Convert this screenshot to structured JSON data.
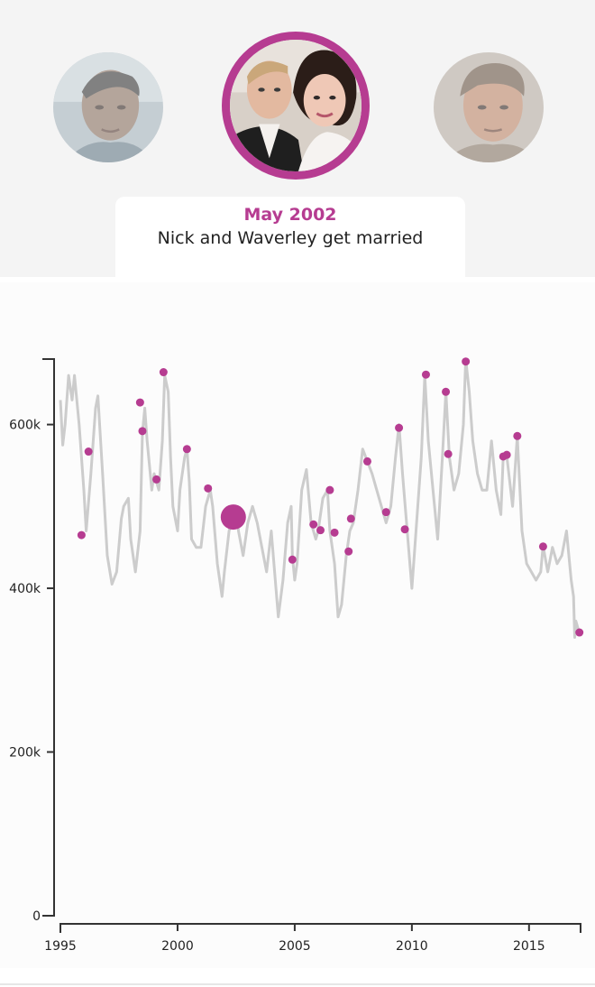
{
  "header": {
    "avatars": [
      {
        "position": "left",
        "icon": "person-portrait",
        "active": false
      },
      {
        "position": "center",
        "icon": "couple-portrait",
        "active": true
      },
      {
        "position": "right",
        "icon": "person-portrait",
        "active": false
      }
    ],
    "caption": {
      "date": "May 2002",
      "text": "Nick and Waverley get married"
    }
  },
  "colors": {
    "accent": "#b63c91",
    "line": "#cccccc",
    "band": "#f4f4f4",
    "axis": "#333333"
  },
  "chart_data": {
    "type": "line",
    "xlim": [
      1995,
      2017.2
    ],
    "ylim": [
      0,
      680000
    ],
    "x_ticks": [
      1995,
      2000,
      2005,
      2010,
      2015
    ],
    "x_tick_labels": [
      "1995",
      "2000",
      "2005",
      "2010",
      "2015"
    ],
    "y_ticks": [
      0,
      200000,
      400000,
      600000
    ],
    "y_tick_labels": [
      "0",
      "200k",
      "400k",
      "600k"
    ],
    "grid": false,
    "legend": "none",
    "series": [
      {
        "line": [
          [
            1995.0,
            630000
          ],
          [
            1995.1,
            575000
          ],
          [
            1995.2,
            600000
          ],
          [
            1995.35,
            660000
          ],
          [
            1995.5,
            630000
          ],
          [
            1995.6,
            660000
          ],
          [
            1995.8,
            600000
          ],
          [
            1996.0,
            520000
          ],
          [
            1996.1,
            470000
          ],
          [
            1996.3,
            540000
          ],
          [
            1996.5,
            620000
          ],
          [
            1996.6,
            635000
          ],
          [
            1996.8,
            540000
          ],
          [
            1997.0,
            440000
          ],
          [
            1997.2,
            405000
          ],
          [
            1997.4,
            420000
          ],
          [
            1997.6,
            485000
          ],
          [
            1997.7,
            500000
          ],
          [
            1997.9,
            510000
          ],
          [
            1998.0,
            460000
          ],
          [
            1998.2,
            420000
          ],
          [
            1998.4,
            470000
          ],
          [
            1998.5,
            590000
          ],
          [
            1998.6,
            620000
          ],
          [
            1998.7,
            580000
          ],
          [
            1998.9,
            520000
          ],
          [
            1999.0,
            540000
          ],
          [
            1999.2,
            520000
          ],
          [
            1999.35,
            580000
          ],
          [
            1999.45,
            660000
          ],
          [
            1999.6,
            640000
          ],
          [
            1999.7,
            560000
          ],
          [
            1999.8,
            500000
          ],
          [
            2000.0,
            470000
          ],
          [
            2000.1,
            520000
          ],
          [
            2000.3,
            560000
          ],
          [
            2000.4,
            570000
          ],
          [
            2000.5,
            530000
          ],
          [
            2000.6,
            460000
          ],
          [
            2000.8,
            450000
          ],
          [
            2001.0,
            450000
          ],
          [
            2001.2,
            500000
          ],
          [
            2001.4,
            520000
          ],
          [
            2001.5,
            500000
          ],
          [
            2001.7,
            430000
          ],
          [
            2001.9,
            390000
          ],
          [
            2002.0,
            420000
          ],
          [
            2002.2,
            470000
          ],
          [
            2002.38,
            487000
          ],
          [
            2002.5,
            500000
          ],
          [
            2002.6,
            470000
          ],
          [
            2002.8,
            440000
          ],
          [
            2003.0,
            480000
          ],
          [
            2003.2,
            500000
          ],
          [
            2003.4,
            480000
          ],
          [
            2003.6,
            450000
          ],
          [
            2003.8,
            420000
          ],
          [
            2004.0,
            470000
          ],
          [
            2004.2,
            400000
          ],
          [
            2004.3,
            365000
          ],
          [
            2004.5,
            410000
          ],
          [
            2004.7,
            480000
          ],
          [
            2004.85,
            500000
          ],
          [
            2004.9,
            440000
          ],
          [
            2005.0,
            410000
          ],
          [
            2005.1,
            430000
          ],
          [
            2005.3,
            520000
          ],
          [
            2005.5,
            545000
          ],
          [
            2005.7,
            480000
          ],
          [
            2005.9,
            460000
          ],
          [
            2006.0,
            470000
          ],
          [
            2006.2,
            510000
          ],
          [
            2006.4,
            520000
          ],
          [
            2006.5,
            470000
          ],
          [
            2006.7,
            430000
          ],
          [
            2006.85,
            365000
          ],
          [
            2007.0,
            380000
          ],
          [
            2007.2,
            440000
          ],
          [
            2007.35,
            470000
          ],
          [
            2007.5,
            480000
          ],
          [
            2007.7,
            520000
          ],
          [
            2007.9,
            570000
          ],
          [
            2008.1,
            555000
          ],
          [
            2008.3,
            540000
          ],
          [
            2008.5,
            520000
          ],
          [
            2008.7,
            500000
          ],
          [
            2008.9,
            480000
          ],
          [
            2009.1,
            500000
          ],
          [
            2009.3,
            560000
          ],
          [
            2009.45,
            600000
          ],
          [
            2009.6,
            540000
          ],
          [
            2009.8,
            470000
          ],
          [
            2010.0,
            400000
          ],
          [
            2010.2,
            480000
          ],
          [
            2010.4,
            560000
          ],
          [
            2010.55,
            660000
          ],
          [
            2010.7,
            580000
          ],
          [
            2010.9,
            520000
          ],
          [
            2011.1,
            460000
          ],
          [
            2011.3,
            560000
          ],
          [
            2011.45,
            640000
          ],
          [
            2011.6,
            560000
          ],
          [
            2011.8,
            520000
          ],
          [
            2012.0,
            540000
          ],
          [
            2012.2,
            600000
          ],
          [
            2012.3,
            680000
          ],
          [
            2012.45,
            640000
          ],
          [
            2012.6,
            580000
          ],
          [
            2012.8,
            540000
          ],
          [
            2013.0,
            520000
          ],
          [
            2013.2,
            520000
          ],
          [
            2013.4,
            580000
          ],
          [
            2013.6,
            520000
          ],
          [
            2013.8,
            490000
          ],
          [
            2013.9,
            560000
          ],
          [
            2014.05,
            562000
          ],
          [
            2014.3,
            500000
          ],
          [
            2014.5,
            586000
          ],
          [
            2014.7,
            470000
          ],
          [
            2014.9,
            430000
          ],
          [
            2015.1,
            420000
          ],
          [
            2015.3,
            410000
          ],
          [
            2015.5,
            420000
          ],
          [
            2015.6,
            452000
          ],
          [
            2015.8,
            420000
          ],
          [
            2016.0,
            450000
          ],
          [
            2016.2,
            430000
          ],
          [
            2016.4,
            440000
          ],
          [
            2016.6,
            470000
          ],
          [
            2016.8,
            410000
          ],
          [
            2016.9,
            390000
          ],
          [
            2016.95,
            340000
          ],
          [
            2017.0,
            360000
          ],
          [
            2017.1,
            350000
          ],
          [
            2017.15,
            346000
          ]
        ]
      }
    ],
    "events": [
      [
        1995.9,
        465000
      ],
      [
        1996.2,
        567000
      ],
      [
        1998.4,
        627000
      ],
      [
        1998.5,
        592000
      ],
      [
        1999.1,
        533000
      ],
      [
        1999.4,
        664000
      ],
      [
        2000.4,
        570000
      ],
      [
        2001.3,
        522000
      ],
      [
        2002.38,
        487000,
        "selected"
      ],
      [
        2004.9,
        435000
      ],
      [
        2005.8,
        478000
      ],
      [
        2006.1,
        471000
      ],
      [
        2006.5,
        520000
      ],
      [
        2006.7,
        468000
      ],
      [
        2007.3,
        445000
      ],
      [
        2007.4,
        485000
      ],
      [
        2008.1,
        555000
      ],
      [
        2008.9,
        493000
      ],
      [
        2009.45,
        596000
      ],
      [
        2009.7,
        472000
      ],
      [
        2010.6,
        661000
      ],
      [
        2011.45,
        640000
      ],
      [
        2011.55,
        564000
      ],
      [
        2012.3,
        677000
      ],
      [
        2013.9,
        561000
      ],
      [
        2014.05,
        563000
      ],
      [
        2014.5,
        586000
      ],
      [
        2015.6,
        451000
      ],
      [
        2017.15,
        346000
      ]
    ]
  }
}
